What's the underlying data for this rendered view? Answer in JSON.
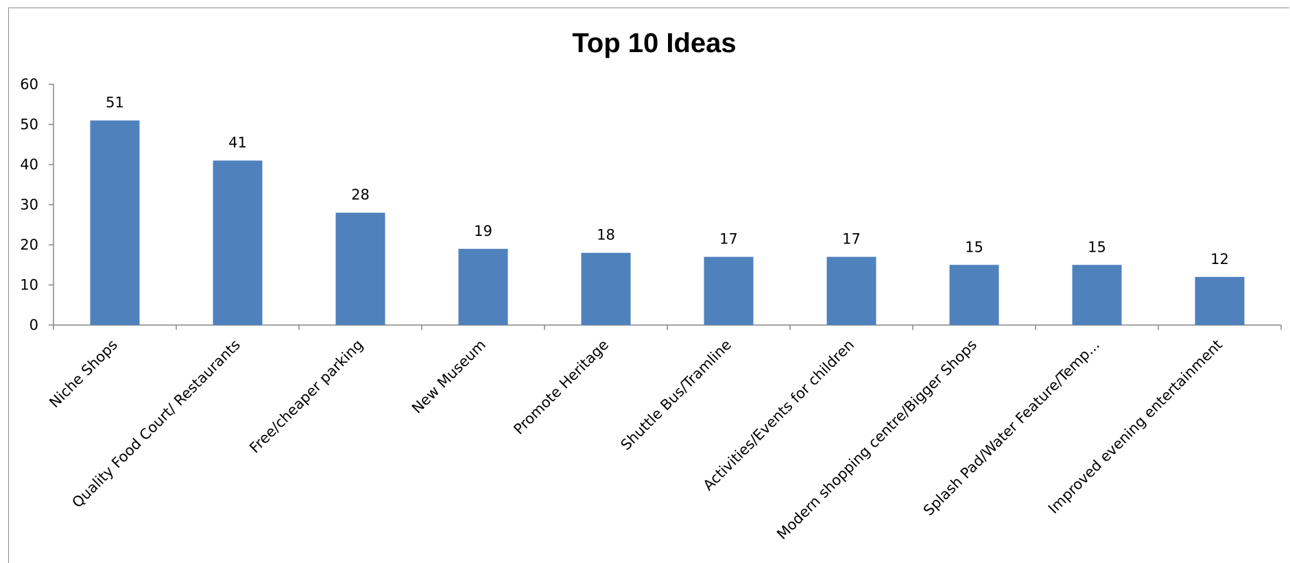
{
  "chart_data": {
    "type": "bar",
    "title": "Top 10 Ideas",
    "xlabel": "",
    "ylabel": "",
    "categories": [
      "Niche Shops",
      "Quality Food Court/ Restaurants",
      "Free/cheaper parking",
      "New Museum",
      "Promote Heritage",
      "Shuttle Bus/Tramline",
      "Activities/Events for children",
      "Modern shopping centre/Bigger Shops",
      "Splash Pad/Water Feature/Temp...",
      "Improved evening entertainment"
    ],
    "values": [
      51,
      41,
      28,
      19,
      18,
      17,
      17,
      15,
      15,
      12
    ],
    "ylim": [
      0,
      60
    ],
    "yticks": [
      0,
      10,
      20,
      30,
      40,
      50,
      60
    ],
    "grid": false,
    "legend": "none",
    "data_labels": true,
    "colors": {
      "bar": "#4f81bd",
      "axis": "#868686",
      "frame": "#8c8c8c"
    }
  }
}
